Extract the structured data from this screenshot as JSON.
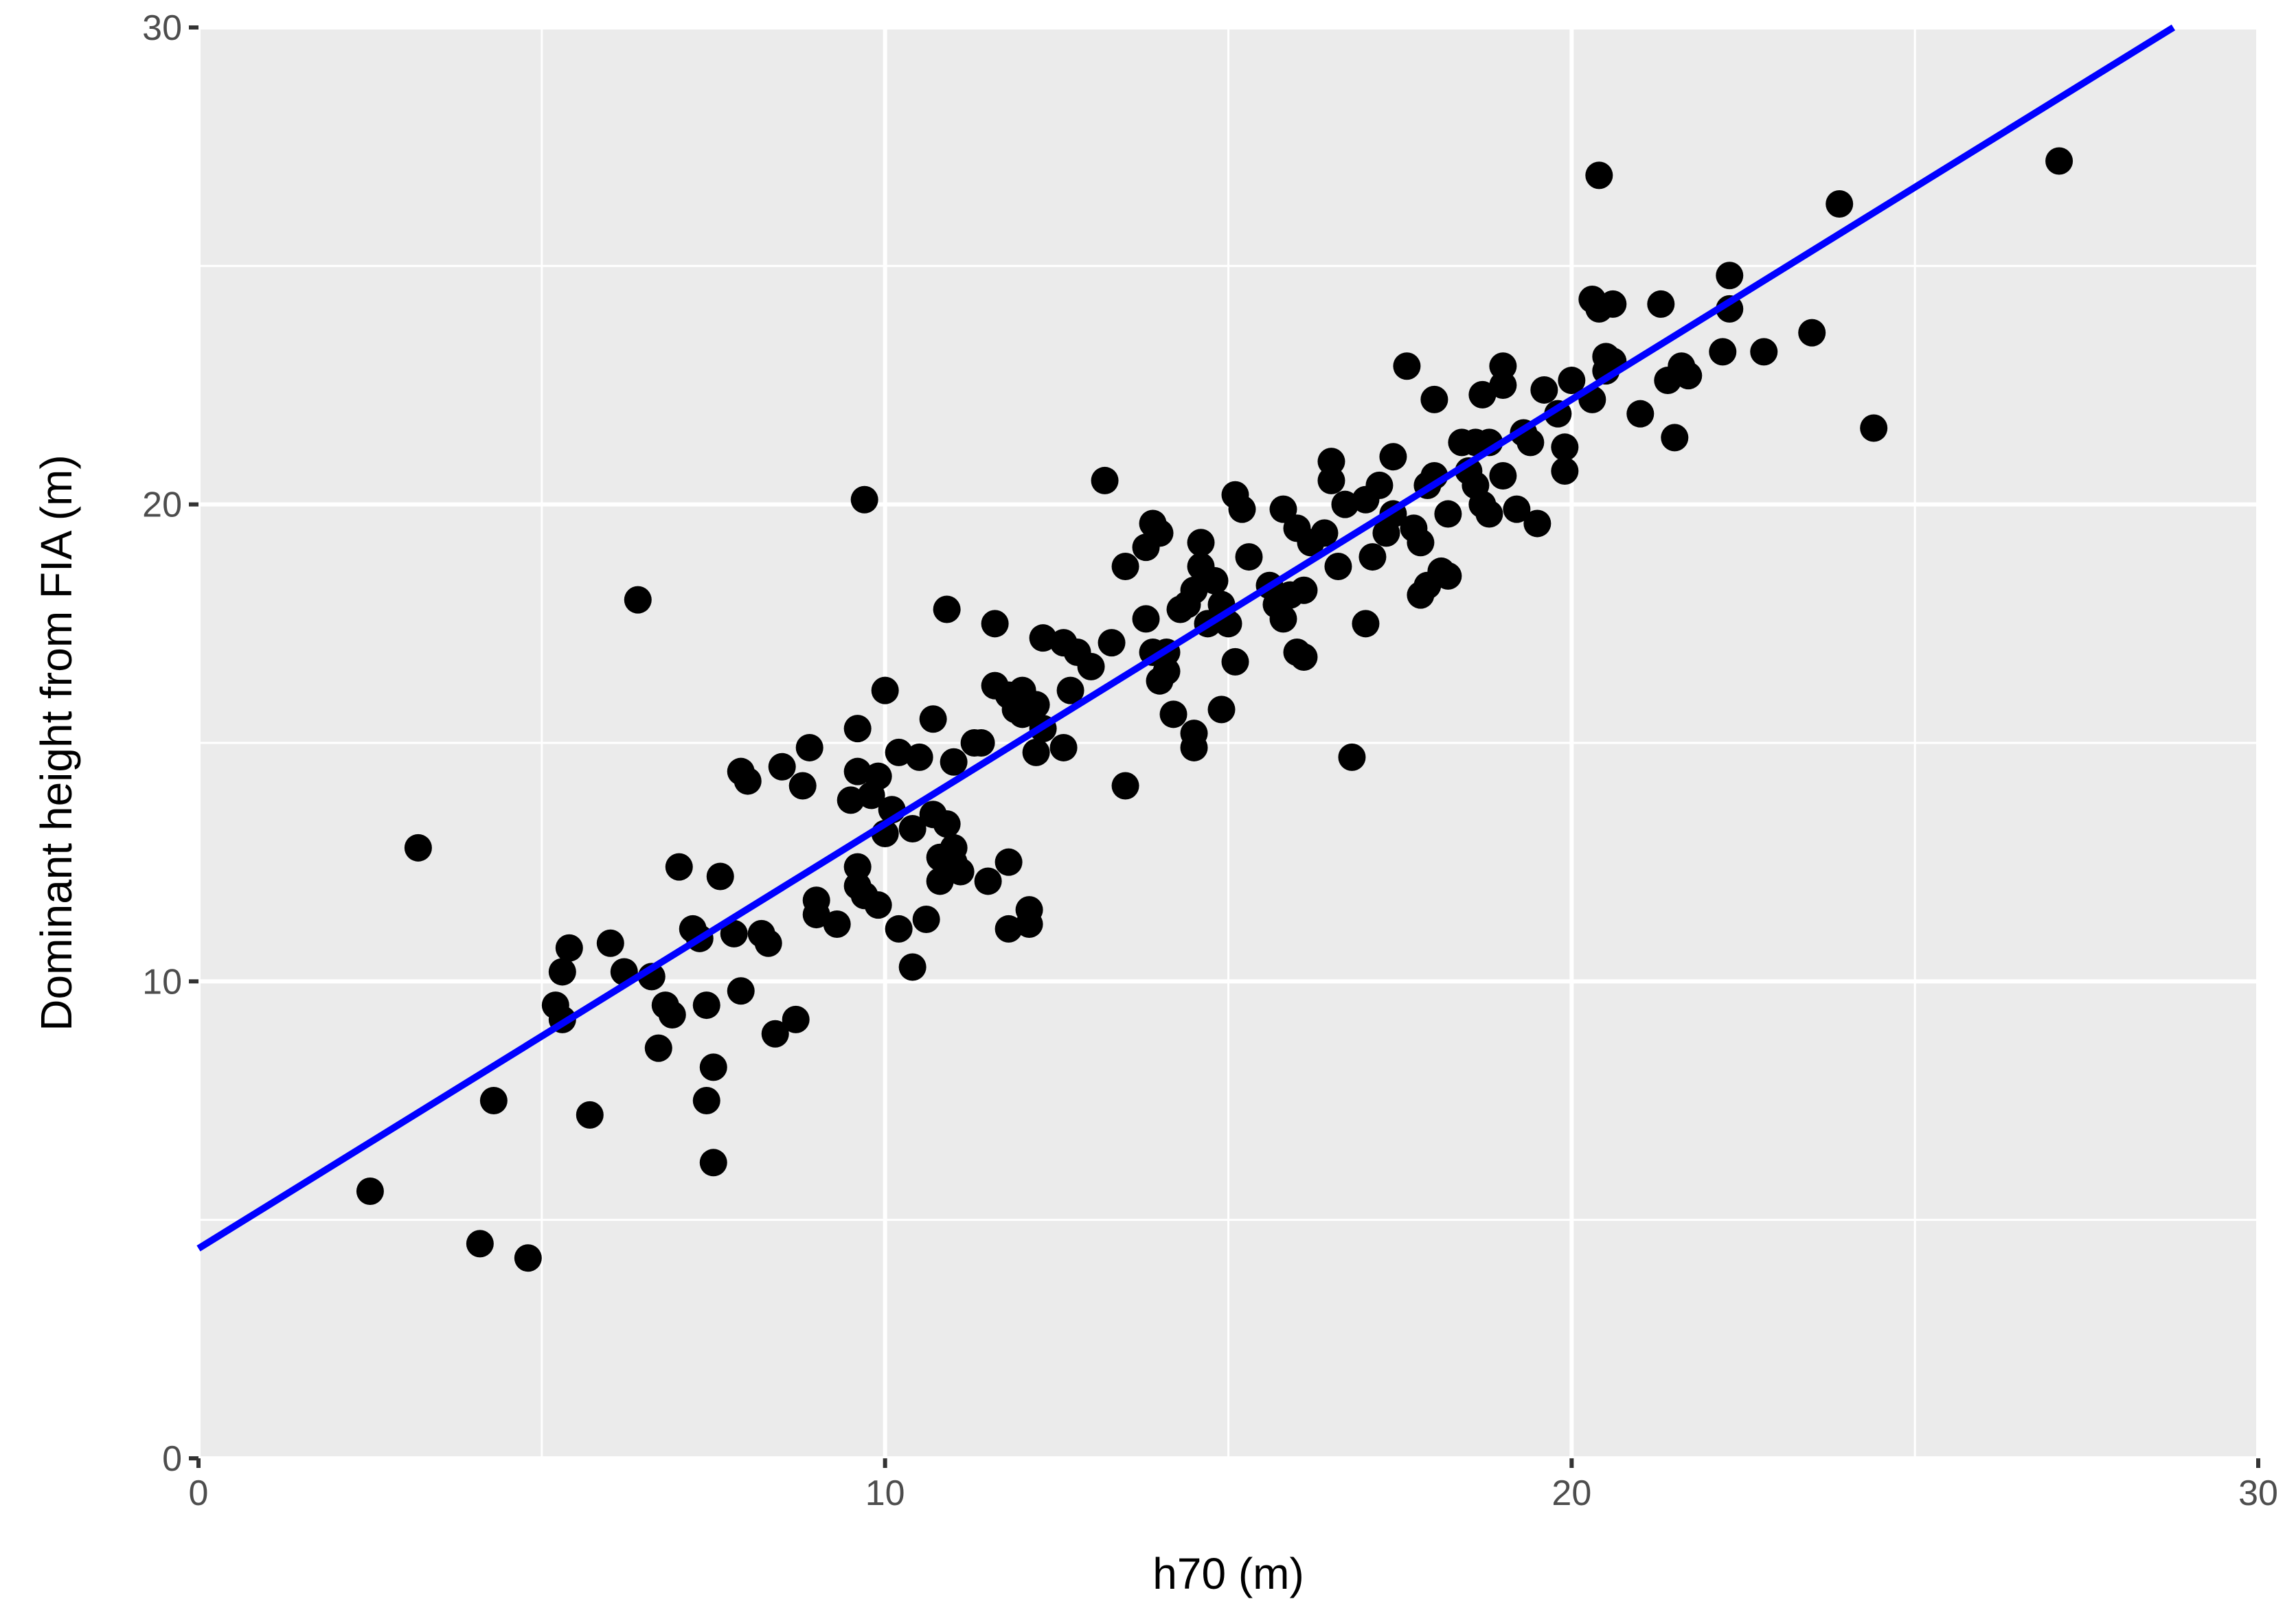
{
  "chart_data": {
    "type": "scatter",
    "title": "",
    "xlabel": "h70 (m)",
    "ylabel": "Dominant height from FIA (m)",
    "xlim": [
      0,
      30
    ],
    "ylim": [
      0,
      30
    ],
    "x_ticks": [
      0,
      10,
      20,
      30
    ],
    "y_ticks": [
      0,
      10,
      20,
      30
    ],
    "x_tick_labels": [
      "0",
      "10",
      "20",
      "30"
    ],
    "y_tick_labels": [
      "0",
      "10",
      "20",
      "30"
    ],
    "grid": true,
    "legend": "none",
    "colors": {
      "panel_background": "#ebebeb",
      "grid": "#ffffff",
      "points": "#000000",
      "fit_line": "#0000ff",
      "tick_text": "#4d4d4d",
      "title_text": "#000000"
    },
    "fit_line": {
      "intercept": 4.4,
      "slope": 0.89
    },
    "points": [
      [
        2.5,
        5.6
      ],
      [
        3.2,
        12.8
      ],
      [
        4.1,
        4.5
      ],
      [
        4.3,
        7.5
      ],
      [
        4.8,
        4.2
      ],
      [
        5.2,
        9.5
      ],
      [
        5.3,
        9.2
      ],
      [
        5.3,
        10.2
      ],
      [
        5.4,
        10.7
      ],
      [
        5.7,
        7.2
      ],
      [
        6.0,
        10.8
      ],
      [
        6.2,
        10.2
      ],
      [
        6.4,
        18.0
      ],
      [
        6.6,
        10.1
      ],
      [
        6.7,
        8.6
      ],
      [
        6.8,
        9.5
      ],
      [
        6.9,
        9.3
      ],
      [
        7.0,
        12.4
      ],
      [
        7.2,
        11.1
      ],
      [
        7.3,
        10.9
      ],
      [
        7.4,
        9.5
      ],
      [
        7.4,
        7.5
      ],
      [
        7.5,
        8.2
      ],
      [
        7.5,
        6.2
      ],
      [
        7.6,
        12.2
      ],
      [
        7.8,
        11.0
      ],
      [
        7.9,
        9.8
      ],
      [
        7.9,
        14.4
      ],
      [
        8.0,
        14.2
      ],
      [
        8.2,
        11.0
      ],
      [
        8.3,
        10.8
      ],
      [
        8.4,
        8.9
      ],
      [
        8.5,
        14.5
      ],
      [
        8.7,
        9.2
      ],
      [
        8.8,
        14.1
      ],
      [
        8.9,
        14.9
      ],
      [
        9.0,
        11.7
      ],
      [
        9.0,
        11.4
      ],
      [
        9.3,
        11.2
      ],
      [
        9.5,
        13.8
      ],
      [
        9.6,
        15.3
      ],
      [
        9.6,
        14.4
      ],
      [
        9.6,
        12.4
      ],
      [
        9.6,
        12.0
      ],
      [
        9.7,
        11.8
      ],
      [
        9.7,
        20.1
      ],
      [
        9.8,
        13.9
      ],
      [
        9.9,
        14.3
      ],
      [
        9.9,
        11.6
      ],
      [
        10.0,
        13.1
      ],
      [
        10.0,
        16.1
      ],
      [
        10.1,
        13.6
      ],
      [
        10.2,
        14.8
      ],
      [
        10.2,
        11.1
      ],
      [
        10.4,
        10.3
      ],
      [
        10.4,
        13.2
      ],
      [
        10.5,
        14.7
      ],
      [
        10.6,
        11.3
      ],
      [
        10.7,
        15.5
      ],
      [
        10.7,
        13.5
      ],
      [
        10.8,
        12.1
      ],
      [
        10.8,
        12.6
      ],
      [
        10.9,
        13.3
      ],
      [
        10.9,
        17.8
      ],
      [
        11.0,
        14.6
      ],
      [
        11.0,
        12.5
      ],
      [
        11.0,
        12.8
      ],
      [
        11.1,
        12.3
      ],
      [
        11.3,
        15.0
      ],
      [
        11.4,
        15.0
      ],
      [
        11.5,
        12.1
      ],
      [
        11.6,
        17.5
      ],
      [
        11.6,
        16.2
      ],
      [
        11.8,
        16.0
      ],
      [
        11.8,
        12.5
      ],
      [
        11.8,
        11.1
      ],
      [
        11.9,
        15.7
      ],
      [
        12.0,
        16.1
      ],
      [
        12.0,
        15.6
      ],
      [
        12.1,
        11.5
      ],
      [
        12.1,
        11.2
      ],
      [
        12.2,
        15.8
      ],
      [
        12.2,
        14.8
      ],
      [
        12.3,
        15.3
      ],
      [
        12.3,
        17.2
      ],
      [
        12.6,
        17.1
      ],
      [
        12.6,
        14.9
      ],
      [
        12.7,
        16.1
      ],
      [
        12.8,
        16.9
      ],
      [
        13.0,
        16.6
      ],
      [
        13.2,
        20.5
      ],
      [
        13.3,
        17.1
      ],
      [
        13.5,
        18.7
      ],
      [
        13.5,
        14.1
      ],
      [
        13.8,
        17.6
      ],
      [
        13.8,
        19.1
      ],
      [
        13.9,
        19.6
      ],
      [
        13.9,
        16.9
      ],
      [
        14.0,
        16.3
      ],
      [
        14.0,
        19.4
      ],
      [
        14.1,
        16.9
      ],
      [
        14.1,
        16.5
      ],
      [
        14.2,
        15.6
      ],
      [
        14.3,
        17.8
      ],
      [
        14.4,
        17.9
      ],
      [
        14.5,
        14.9
      ],
      [
        14.5,
        18.2
      ],
      [
        14.5,
        15.2
      ],
      [
        14.6,
        19.2
      ],
      [
        14.6,
        18.7
      ],
      [
        14.7,
        17.5
      ],
      [
        14.8,
        18.4
      ],
      [
        14.9,
        17.9
      ],
      [
        14.9,
        15.7
      ],
      [
        15.0,
        17.5
      ],
      [
        15.1,
        16.7
      ],
      [
        15.1,
        20.2
      ],
      [
        15.2,
        19.9
      ],
      [
        15.3,
        18.9
      ],
      [
        15.6,
        18.3
      ],
      [
        15.7,
        17.9
      ],
      [
        15.8,
        17.6
      ],
      [
        15.8,
        19.9
      ],
      [
        15.9,
        18.1
      ],
      [
        16.0,
        16.9
      ],
      [
        16.0,
        19.5
      ],
      [
        16.1,
        16.8
      ],
      [
        16.1,
        18.2
      ],
      [
        16.2,
        19.2
      ],
      [
        16.4,
        19.4
      ],
      [
        16.5,
        20.9
      ],
      [
        16.5,
        20.5
      ],
      [
        16.6,
        18.7
      ],
      [
        16.7,
        20.0
      ],
      [
        16.8,
        14.7
      ],
      [
        17.0,
        20.1
      ],
      [
        17.0,
        17.5
      ],
      [
        17.1,
        18.9
      ],
      [
        17.2,
        20.4
      ],
      [
        17.3,
        19.4
      ],
      [
        17.4,
        21.0
      ],
      [
        17.4,
        19.8
      ],
      [
        17.6,
        22.9
      ],
      [
        17.7,
        19.5
      ],
      [
        17.8,
        18.1
      ],
      [
        17.8,
        19.2
      ],
      [
        17.9,
        20.4
      ],
      [
        17.9,
        18.3
      ],
      [
        18.0,
        22.2
      ],
      [
        18.0,
        20.6
      ],
      [
        18.1,
        18.6
      ],
      [
        18.2,
        19.8
      ],
      [
        18.2,
        18.5
      ],
      [
        18.4,
        21.3
      ],
      [
        18.5,
        20.7
      ],
      [
        18.6,
        20.4
      ],
      [
        18.6,
        21.3
      ],
      [
        18.7,
        20.0
      ],
      [
        18.7,
        22.3
      ],
      [
        18.8,
        21.3
      ],
      [
        18.8,
        19.8
      ],
      [
        19.0,
        22.5
      ],
      [
        19.0,
        22.9
      ],
      [
        19.0,
        20.6
      ],
      [
        19.2,
        19.9
      ],
      [
        19.3,
        21.5
      ],
      [
        19.4,
        21.3
      ],
      [
        19.5,
        19.6
      ],
      [
        19.6,
        22.4
      ],
      [
        19.8,
        21.9
      ],
      [
        19.9,
        20.7
      ],
      [
        19.9,
        21.2
      ],
      [
        20.0,
        22.6
      ],
      [
        20.3,
        24.3
      ],
      [
        20.3,
        22.2
      ],
      [
        20.4,
        26.9
      ],
      [
        20.4,
        24.1
      ],
      [
        20.5,
        22.8
      ],
      [
        20.5,
        23.1
      ],
      [
        20.6,
        24.2
      ],
      [
        20.6,
        23.0
      ],
      [
        21.0,
        21.9
      ],
      [
        21.3,
        24.2
      ],
      [
        21.4,
        22.6
      ],
      [
        21.5,
        21.4
      ],
      [
        21.6,
        22.9
      ],
      [
        21.7,
        22.7
      ],
      [
        22.2,
        23.2
      ],
      [
        22.3,
        24.8
      ],
      [
        22.3,
        24.1
      ],
      [
        22.8,
        23.2
      ],
      [
        23.5,
        23.6
      ],
      [
        23.9,
        26.3
      ],
      [
        24.4,
        21.6
      ],
      [
        27.1,
        27.2
      ]
    ]
  }
}
